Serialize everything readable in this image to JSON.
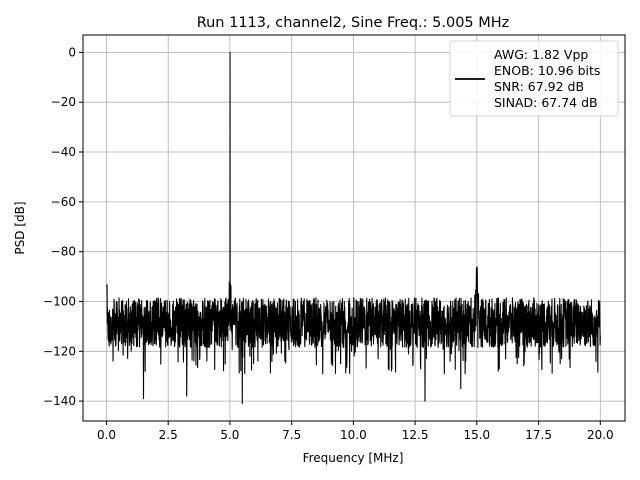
{
  "chart_data": {
    "type": "line",
    "title": "Run 1113, channel2, Sine Freq.: 5.005 MHz",
    "xlabel": "Frequency [MHz]",
    "ylabel": "PSD [dB]",
    "xlim": [
      -0.95,
      21.0
    ],
    "ylim": [
      -148,
      7
    ],
    "xticks": [
      0.0,
      2.5,
      5.0,
      7.5,
      10.0,
      12.5,
      15.0,
      17.5,
      20.0
    ],
    "xtick_labels": [
      "0.0",
      "2.5",
      "5.0",
      "7.5",
      "10.0",
      "12.5",
      "15.0",
      "17.5",
      "20.0"
    ],
    "yticks": [
      0,
      -20,
      -40,
      -60,
      -80,
      -100,
      -120,
      -140
    ],
    "ytick_labels": [
      "0",
      "−20",
      "−40",
      "−60",
      "−80",
      "−100",
      "−120",
      "−140"
    ],
    "grid": true,
    "legend_position": "top-right",
    "series": [
      {
        "color": "#000000",
        "legend_lines": [
          "AWG: 1.82 Vpp",
          "ENOB: 10.96 bits",
          "SNR: 67.92 dB",
          "SINAD: 67.74 dB"
        ],
        "x_range": [
          0.0,
          20.0
        ],
        "noise_floor_band": [
          -119,
          -98
        ],
        "noise_floor_min_excursion": -141,
        "peaks": [
          {
            "x": 0.0,
            "y": -93
          },
          {
            "x": 5.005,
            "y": 0
          },
          {
            "x": 15.0,
            "y": -85
          }
        ],
        "deep_dips": [
          {
            "x": 1.5,
            "y": -139
          },
          {
            "x": 3.25,
            "y": -138
          },
          {
            "x": 5.5,
            "y": -141
          },
          {
            "x": 12.9,
            "y": -140
          },
          {
            "x": 14.35,
            "y": -135
          }
        ]
      }
    ]
  }
}
